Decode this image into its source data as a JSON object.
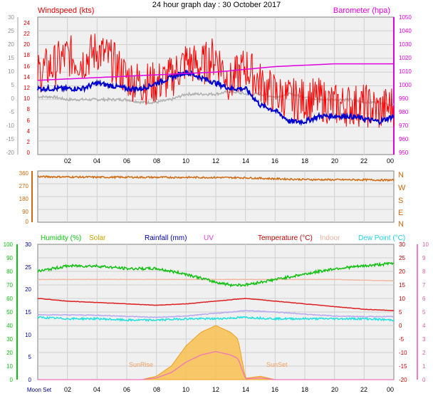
{
  "title": "24 hour graph day : 30 October 2017",
  "colors": {
    "wind": "#e00000",
    "gust": "#ff0000",
    "avg": "#0000d0",
    "gray": "#b0b0b0",
    "baro": "#e000e0",
    "dir": "#d06a10",
    "humidity": "#10c010",
    "solar": "#f0a020",
    "rain": "#0000a0",
    "uv": "#e040e0",
    "temp": "#e02020",
    "indoor": "#f0b8a0",
    "dew": "#20e0e0",
    "panel_bg": "#f0f0f0",
    "grid": "#d0d0d0"
  },
  "chart_data": [
    {
      "type": "line",
      "panel": "wind",
      "title": "Windspeed (kts)",
      "right_title": "Barometer (hpa)",
      "x_ticks": [
        "02",
        "04",
        "06",
        "08",
        "10",
        "12",
        "14",
        "16",
        "18",
        "20",
        "22",
        "00"
      ],
      "inner_ticks": [
        "24",
        "22",
        "20",
        "18",
        "16",
        "14",
        "12",
        "10",
        "8",
        "6",
        "4",
        "2",
        "0"
      ],
      "outer_ticks": [
        "30",
        "25",
        "20",
        "15",
        "10",
        "5",
        "0",
        "-5",
        "-10",
        "-15",
        "-20"
      ],
      "right_ticks": [
        "1050",
        "1040",
        "1030",
        "1020",
        "1010",
        "1000",
        "990",
        "980",
        "970",
        "960",
        "950"
      ],
      "ylim": [
        0,
        25
      ],
      "baro_ylim": [
        950,
        1050
      ],
      "series": [
        {
          "key": "gust",
          "x": [
            0,
            1,
            2,
            3,
            4,
            5,
            6,
            7,
            8,
            9,
            10,
            11,
            12,
            13,
            14,
            15,
            16,
            17,
            18,
            19,
            20,
            21,
            22,
            23,
            24
          ],
          "values": [
            15,
            16,
            18,
            17,
            19,
            17,
            14,
            13,
            13,
            14,
            17,
            16,
            18,
            13,
            16,
            13,
            11,
            10,
            10,
            10,
            9,
            9,
            9,
            8,
            9
          ]
        },
        {
          "key": "avg",
          "x": [
            0,
            1,
            2,
            3,
            4,
            5,
            6,
            7,
            8,
            9,
            10,
            11,
            12,
            13,
            14,
            15,
            16,
            17,
            18,
            19,
            20,
            21,
            22,
            23,
            24
          ],
          "values": [
            12,
            12,
            12,
            12,
            13,
            12.5,
            12,
            12,
            13,
            14,
            15,
            14,
            13,
            12,
            12,
            9,
            8,
            6,
            6,
            7,
            7,
            7,
            6.5,
            6,
            7
          ]
        },
        {
          "key": "gray",
          "x": [
            0,
            1,
            2,
            3,
            4,
            5,
            6,
            7,
            8,
            9,
            10,
            11,
            12,
            13,
            14,
            15,
            16,
            17,
            18,
            19,
            20,
            21,
            22,
            23,
            24
          ],
          "values": [
            10.5,
            10.5,
            10,
            10,
            10,
            10,
            10,
            9.5,
            9.5,
            10,
            11,
            11,
            11,
            11.5,
            11,
            11,
            10.5,
            11,
            10.5,
            10,
            10,
            10,
            9.5,
            9.5,
            9
          ]
        },
        {
          "key": "baro",
          "x": [
            0,
            2,
            4,
            6,
            8,
            10,
            12,
            14,
            15,
            16,
            18,
            20,
            22,
            24
          ],
          "values": [
            1004,
            1005,
            1006,
            1007,
            1008,
            1009,
            1010,
            1012,
            1013,
            1014,
            1015,
            1016,
            1016,
            1016
          ]
        }
      ]
    },
    {
      "type": "line",
      "panel": "direction",
      "ticks": [
        "360",
        "270",
        "180",
        "90",
        "0"
      ],
      "compass": [
        "N",
        "W",
        "S",
        "E",
        "N"
      ],
      "ylim": [
        0,
        360
      ],
      "series": [
        {
          "key": "dir",
          "x": [
            0,
            2,
            4,
            6,
            8,
            10,
            12,
            14,
            16,
            18,
            20,
            22,
            24
          ],
          "values": [
            320,
            318,
            316,
            316,
            315,
            315,
            314,
            312,
            305,
            300,
            298,
            298,
            295
          ]
        }
      ]
    },
    {
      "type": "line",
      "panel": "climate",
      "legend": [
        "Humidity (%)",
        "Solar",
        "Rainfall (mm)",
        "UV",
        "Temperature (°C)",
        "Indoor",
        "Dew Point (°C)"
      ],
      "x_ticks": [
        "02",
        "04",
        "06",
        "08",
        "10",
        "12",
        "14",
        "16",
        "18",
        "20",
        "22",
        "00"
      ],
      "moon_label": "Moon Set",
      "sunrise_label": "SunRise",
      "sunset_label": "SunSet",
      "humidity_ticks": [
        "100",
        "90",
        "80",
        "70",
        "60",
        "50",
        "40",
        "30",
        "20",
        "10",
        "0"
      ],
      "rain_ticks": [
        "30",
        "25",
        "20",
        "15",
        "10",
        "5",
        "0"
      ],
      "temp_ticks": [
        "30",
        "25",
        "20",
        "15",
        "10",
        "5",
        "0",
        "-5",
        "-10",
        "-15",
        "-20"
      ],
      "uv_ticks": [
        "10",
        "9",
        "8",
        "7",
        "6",
        "5",
        "4",
        "3",
        "2",
        "1",
        "0"
      ],
      "temp_ylim": [
        -20,
        30
      ],
      "series": [
        {
          "key": "humidity",
          "x": [
            0,
            2,
            4,
            6,
            8,
            10,
            12,
            13,
            14,
            15,
            16,
            18,
            20,
            22,
            24
          ],
          "values": [
            20,
            22,
            22,
            21,
            21,
            19,
            16,
            15,
            15,
            16,
            17,
            19,
            21,
            22,
            23
          ]
        },
        {
          "key": "indoor",
          "x": [
            0,
            4,
            8,
            12,
            16,
            20,
            24
          ],
          "values": [
            17,
            17,
            17,
            17,
            17,
            17,
            16.5
          ]
        },
        {
          "key": "temp",
          "x": [
            0,
            2,
            4,
            6,
            8,
            10,
            12,
            14,
            16,
            18,
            20,
            22,
            24
          ],
          "values": [
            10,
            9,
            8.5,
            8,
            7.5,
            8,
            9,
            10,
            9,
            8,
            7,
            6,
            5.5
          ]
        },
        {
          "key": "uvline",
          "x": [
            0,
            4,
            8,
            10,
            12,
            14,
            16,
            18,
            20,
            22,
            24
          ],
          "values": [
            4,
            3.8,
            3,
            3.5,
            4.5,
            5.5,
            5,
            4.2,
            3.5,
            3.3,
            3.3
          ]
        },
        {
          "key": "dew",
          "x": [
            0,
            2,
            4,
            6,
            8,
            10,
            12,
            14,
            16,
            18,
            20,
            22,
            24
          ],
          "values": [
            3,
            2.5,
            2.5,
            2,
            2,
            2.5,
            2.5,
            3,
            2.5,
            2.5,
            2.5,
            2.5,
            2
          ]
        },
        {
          "key": "solar",
          "x": [
            7,
            8,
            9,
            10,
            11,
            12,
            13,
            13.5,
            14,
            15,
            16,
            24
          ],
          "values": [
            0,
            0.5,
            2,
            5,
            7,
            8,
            7,
            6,
            0.2,
            0.5,
            0,
            0
          ]
        }
      ]
    }
  ]
}
